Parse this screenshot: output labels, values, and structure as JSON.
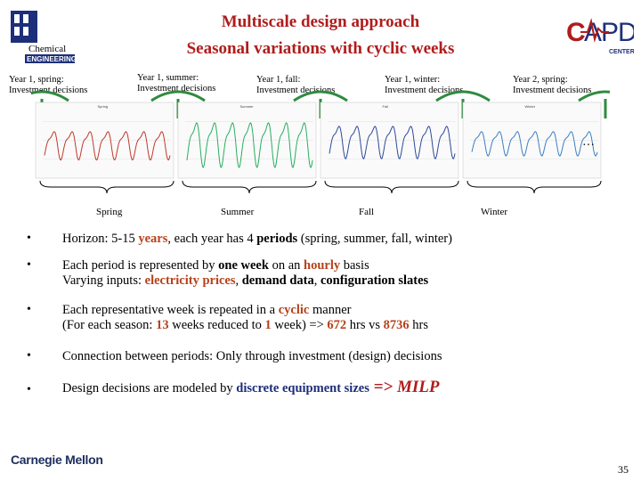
{
  "header": {
    "title_line1": "Multiscale design approach",
    "title_line2": "Seasonal variations with cyclic weeks"
  },
  "logos": {
    "left_text": "Chemical ENGINEERING",
    "right_text_main": "CAPD",
    "right_text_sub": "CENTER"
  },
  "timeline": {
    "decision_labels": [
      {
        "line1": "Year 1, spring:",
        "line2": "Investment decisions"
      },
      {
        "line1": "Year 1, summer:",
        "line2": "Investment decisions"
      },
      {
        "line1": "Year 1, fall:",
        "line2": "Investment decisions"
      },
      {
        "line1": "Year 1, winter:",
        "line2": "Investment decisions"
      },
      {
        "line1": "Year 2, spring:",
        "line2": "Investment decisions"
      }
    ],
    "ellipsis": "…",
    "season_labels": [
      "Spring",
      "Summer",
      "Fall",
      "Winter"
    ],
    "panel_titles": [
      "Spring",
      "Summer",
      "Fall",
      "Winter"
    ],
    "series_colors": [
      "#c0392b",
      "#27ae60",
      "#2c4a9a",
      "#3a7fc4"
    ]
  },
  "bullets": {
    "marker": "•",
    "b1": {
      "t1": "Horizon: 5-15 ",
      "t2": "years",
      "t3": ", each year has 4 ",
      "t4": "periods",
      "t5": " (spring, summer, fall, winter)"
    },
    "b2": {
      "t1": "Each period is represented by ",
      "t2": "one week",
      "t3": " on an ",
      "t4": "hourly",
      "t5": " basis",
      "l2a": "Varying inputs: ",
      "l2b": "electricity prices",
      "l2c": ", ",
      "l2d": "demand data",
      "l2e": ", ",
      "l2f": "configuration slates"
    },
    "b3": {
      "t1": "Each representative week is repeated in a ",
      "t2": "cyclic",
      "t3": " manner",
      "l2a": "(For each season: ",
      "l2b": "13",
      "l2c": " weeks reduced to ",
      "l2d": "1",
      "l2e": " week)  =>  ",
      "l2f": "672",
      "l2g": " hrs vs ",
      "l2h": "8736",
      "l2i": " hrs"
    },
    "b4": {
      "t1": "Connection between periods: Only through investment (design) decisions"
    },
    "b5": {
      "t1": "Design decisions are modeled by ",
      "t2": "discrete equipment sizes",
      "t3": " => MILP"
    }
  },
  "footer": {
    "org": "Carnegie Mellon",
    "page": "35"
  }
}
